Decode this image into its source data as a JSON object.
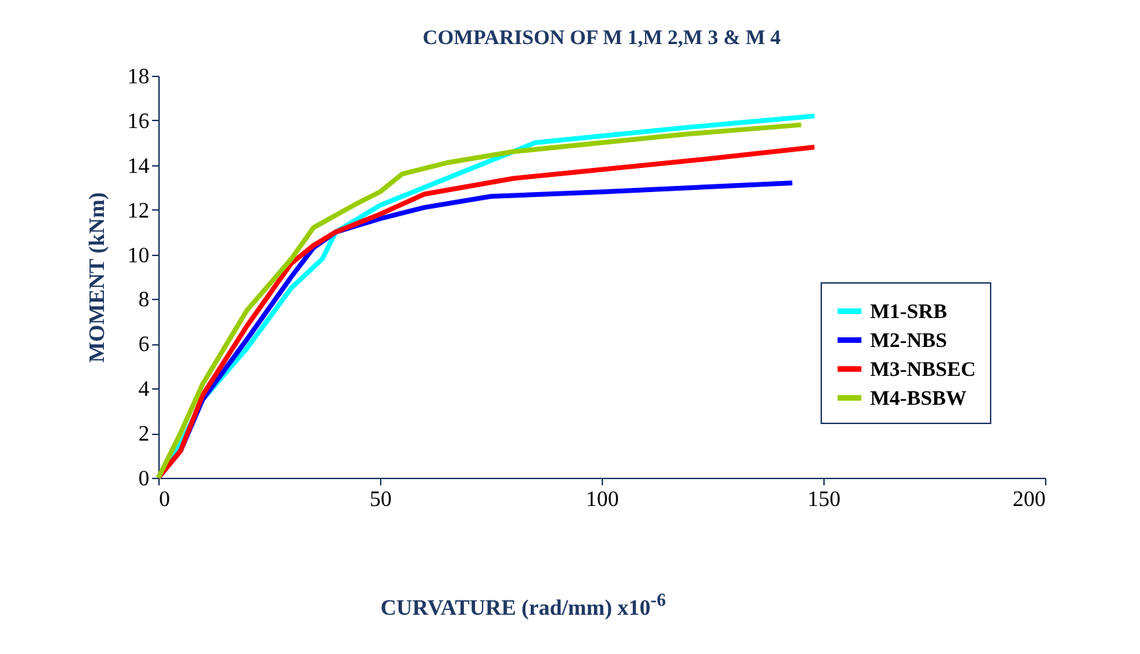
{
  "chart_data": {
    "type": "line",
    "title": "COMPARISON OF M 1,M 2,M 3 & M 4",
    "xlabel": "CURVATURE (rad/mm) x10$^{-6}$",
    "ylabel": "MOMENT (kNm)",
    "xlim": [
      0,
      200
    ],
    "xticks": [
      0,
      50,
      100,
      150,
      200
    ],
    "ylim": [
      0,
      18
    ],
    "yticks": [
      0,
      2,
      4,
      6,
      8,
      10,
      12,
      14,
      16,
      18
    ],
    "legend": "bottom right",
    "grid": false,
    "marker": "none",
    "line_style": "solid",
    "series": [
      {
        "name": "M1-SRB",
        "color": "#00ffff",
        "x": [
          0,
          5,
          10,
          20,
          30,
          37,
          40,
          50,
          60,
          70,
          85,
          100,
          120,
          148
        ],
        "values": [
          0,
          1.5,
          3.5,
          5.8,
          8.5,
          9.8,
          11,
          12.2,
          13,
          13.8,
          15,
          15.3,
          15.7,
          16.2
        ]
      },
      {
        "name": "M2-NBS",
        "color": "#0000ff",
        "x": [
          0,
          5,
          10,
          20,
          30,
          35,
          40,
          50,
          60,
          75,
          100,
          143
        ],
        "values": [
          0,
          1.2,
          3.5,
          6.2,
          9,
          10.3,
          11,
          11.6,
          12.1,
          12.6,
          12.8,
          13.2
        ]
      },
      {
        "name": "M3-NBSEC",
        "color": "#ff0000",
        "x": [
          0,
          5,
          10,
          20,
          30,
          35,
          40,
          50,
          60,
          80,
          100,
          125,
          148
        ],
        "values": [
          0,
          1.2,
          3.7,
          6.8,
          9.6,
          10.4,
          11,
          11.8,
          12.7,
          13.4,
          13.8,
          14.3,
          14.8
        ]
      },
      {
        "name": "M4-BSBW",
        "color": "#99cc00",
        "x": [
          0,
          5,
          10,
          20,
          30,
          35,
          45,
          50,
          55,
          65,
          80,
          100,
          120,
          145
        ],
        "values": [
          0,
          2,
          4.2,
          7.5,
          9.8,
          11.2,
          12.3,
          12.8,
          13.6,
          14.1,
          14.6,
          15,
          15.4,
          15.8
        ]
      }
    ]
  }
}
